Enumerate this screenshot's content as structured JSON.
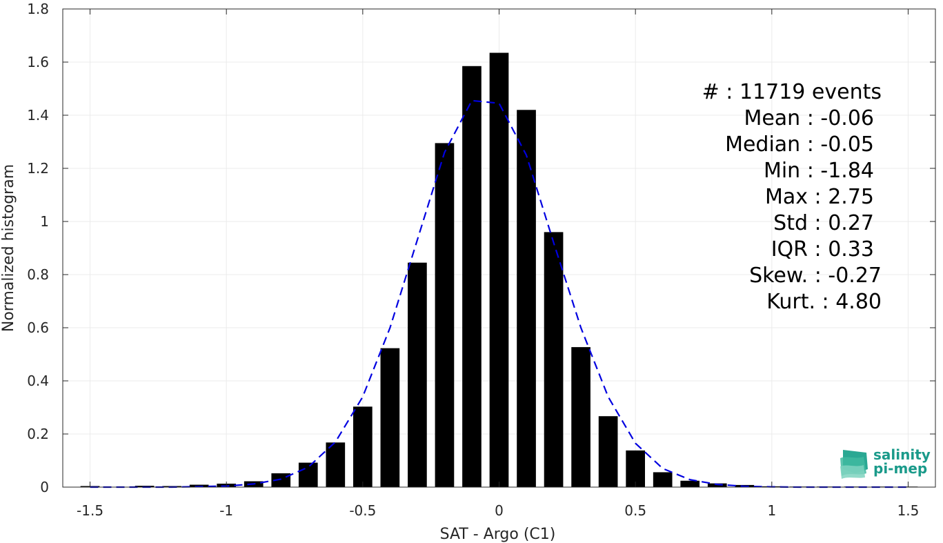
{
  "chart_data": {
    "type": "bar",
    "title": "",
    "xlabel": "SAT - Argo (C1)",
    "ylabel": "Normalized histogram",
    "xlim": [
      -1.6,
      1.6
    ],
    "ylim": [
      0,
      1.8
    ],
    "x_ticks": [
      -1.5,
      -1,
      -0.5,
      0,
      0.5,
      1,
      1.5
    ],
    "x_tick_labels": [
      "-1.5",
      "-1",
      "-0.5",
      "0",
      "0.5",
      "1",
      "1.5"
    ],
    "y_ticks": [
      0,
      0.2,
      0.4,
      0.6,
      0.8,
      1,
      1.2,
      1.4,
      1.6,
      1.8
    ],
    "y_tick_labels": [
      "0",
      "0.2",
      "0.4",
      "0.6",
      "0.8",
      "1",
      "1.2",
      "1.4",
      "1.6",
      "1.8"
    ],
    "grid": true,
    "bar_width": 0.07,
    "bar_color": "#000000",
    "bins": [
      {
        "x": -1.5,
        "y": 0.004
      },
      {
        "x": -1.3,
        "y": 0.005
      },
      {
        "x": -1.2,
        "y": 0.004
      },
      {
        "x": -1.1,
        "y": 0.009
      },
      {
        "x": -1.0,
        "y": 0.013
      },
      {
        "x": -0.9,
        "y": 0.022
      },
      {
        "x": -0.8,
        "y": 0.052
      },
      {
        "x": -0.7,
        "y": 0.092
      },
      {
        "x": -0.6,
        "y": 0.168
      },
      {
        "x": -0.5,
        "y": 0.303
      },
      {
        "x": -0.4,
        "y": 0.523
      },
      {
        "x": -0.3,
        "y": 0.845
      },
      {
        "x": -0.2,
        "y": 1.295
      },
      {
        "x": -0.1,
        "y": 1.585
      },
      {
        "x": 0.0,
        "y": 1.635
      },
      {
        "x": 0.1,
        "y": 1.42
      },
      {
        "x": 0.2,
        "y": 0.96
      },
      {
        "x": 0.3,
        "y": 0.527
      },
      {
        "x": 0.4,
        "y": 0.267
      },
      {
        "x": 0.5,
        "y": 0.138
      },
      {
        "x": 0.6,
        "y": 0.056
      },
      {
        "x": 0.7,
        "y": 0.024
      },
      {
        "x": 0.8,
        "y": 0.014
      },
      {
        "x": 0.9,
        "y": 0.008
      },
      {
        "x": 1.0,
        "y": 0.003
      },
      {
        "x": 1.1,
        "y": 0.002
      },
      {
        "x": 1.2,
        "y": 0.002
      },
      {
        "x": 1.3,
        "y": 0.002
      },
      {
        "x": 1.4,
        "y": 0.002
      },
      {
        "x": 1.5,
        "y": 0.002
      }
    ],
    "fit_curve": {
      "color": "#0000e0",
      "dash": true,
      "points": [
        [
          -1.5,
          0.0
        ],
        [
          -1.4,
          0.0
        ],
        [
          -1.3,
          0.0
        ],
        [
          -1.2,
          0.0
        ],
        [
          -1.1,
          0.002
        ],
        [
          -1.0,
          0.004
        ],
        [
          -0.9,
          0.012
        ],
        [
          -0.8,
          0.03
        ],
        [
          -0.7,
          0.075
        ],
        [
          -0.6,
          0.17
        ],
        [
          -0.5,
          0.34
        ],
        [
          -0.4,
          0.6
        ],
        [
          -0.3,
          0.93
        ],
        [
          -0.2,
          1.26
        ],
        [
          -0.1,
          1.455
        ],
        [
          0.0,
          1.445
        ],
        [
          0.1,
          1.25
        ],
        [
          0.2,
          0.92
        ],
        [
          0.3,
          0.6
        ],
        [
          0.4,
          0.34
        ],
        [
          0.5,
          0.165
        ],
        [
          0.6,
          0.07
        ],
        [
          0.7,
          0.028
        ],
        [
          0.8,
          0.01
        ],
        [
          0.9,
          0.003
        ],
        [
          1.0,
          0.001
        ],
        [
          1.1,
          0.0
        ],
        [
          1.2,
          0.0
        ],
        [
          1.3,
          0.0
        ],
        [
          1.4,
          0.0
        ],
        [
          1.5,
          0.0
        ]
      ]
    },
    "annotations": [
      "#  : 11719 events",
      "Mean : -0.06",
      "Median : -0.05",
      "Min : -1.84",
      "Max : 2.75",
      "Std : 0.27",
      "IQR : 0.33",
      "Skew. : -0.27",
      "Kurt. : 4.80"
    ],
    "annotation_placement": "top-right"
  },
  "logo": {
    "line1": "salinity",
    "line2": "pi-mep",
    "color": "#1a9a8a"
  },
  "colors": {
    "grid": "#ebebeb",
    "axis": "#262626",
    "fit": "#0000e0"
  }
}
